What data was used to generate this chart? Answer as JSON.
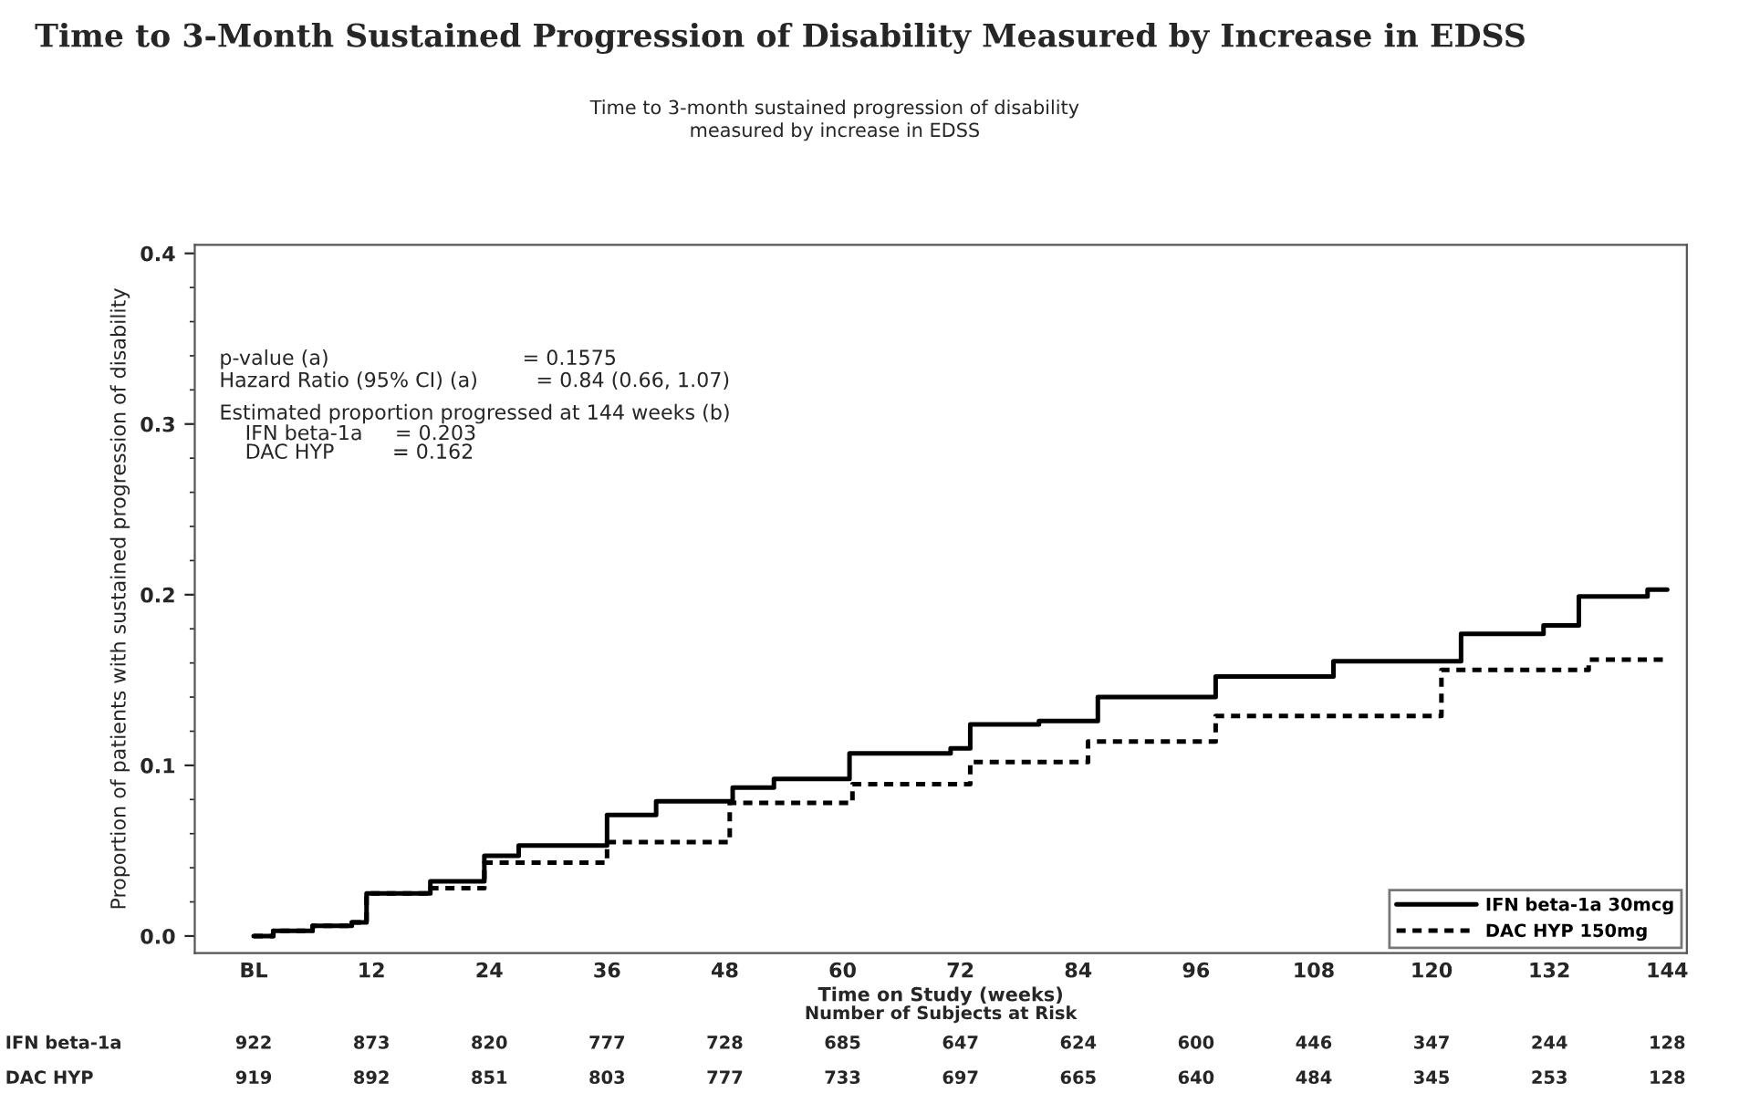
{
  "chart_data": {
    "type": "step",
    "title": "Time to 3-Month Sustained Progression of Disability Measured by Increase in EDSS",
    "subtitle": "Time to 3-month sustained progression of disability\nmeasured by increase in EDSS",
    "xlabel": "Time on Study (weeks)",
    "ylabel": "Proportion of patients with sustained progression of disability",
    "series": [
      {
        "name": "IFN beta-1a 30mcg",
        "color": "#000000",
        "line_style": "solid",
        "x": [
          0,
          2,
          6,
          10,
          11.5,
          18,
          23.5,
          27,
          36,
          41,
          48.8,
          53,
          60.7,
          71,
          73,
          80,
          86,
          98,
          110,
          123,
          131.4,
          135,
          142,
          144
        ],
        "values": [
          0.0,
          0.003,
          0.006,
          0.008,
          0.025,
          0.032,
          0.047,
          0.053,
          0.071,
          0.079,
          0.087,
          0.092,
          0.107,
          0.11,
          0.124,
          0.126,
          0.14,
          0.152,
          0.161,
          0.177,
          0.182,
          0.199,
          0.203,
          0.203
        ]
      },
      {
        "name": "DAC HYP 150mg",
        "color": "#000000",
        "line_style": "dashed",
        "x": [
          0,
          2,
          6,
          10,
          11.5,
          18,
          23.5,
          36,
          48.5,
          61,
          73,
          85,
          98,
          121,
          136,
          144
        ],
        "values": [
          0.0,
          0.003,
          0.006,
          0.008,
          0.025,
          0.028,
          0.043,
          0.055,
          0.078,
          0.089,
          0.102,
          0.114,
          0.129,
          0.156,
          0.162,
          0.162
        ]
      }
    ],
    "xlim": [
      -6,
      146
    ],
    "xticks": [
      {
        "value": 0,
        "label": "BL"
      },
      12,
      24,
      36,
      48,
      60,
      72,
      84,
      96,
      108,
      120,
      132,
      144
    ],
    "ylim": [
      -0.01,
      0.405
    ],
    "yticks": [
      {
        "value": 0,
        "label": "0.0"
      },
      0.1,
      0.2,
      0.3,
      0.4
    ],
    "legend": "bottom right",
    "grid": false,
    "annotations": [
      "p-value (a)                              = 0.1575",
      "Hazard Ratio (95% CI) (a)         = 0.84 (0.66, 1.07)",
      "Estimated proportion progressed at 144 weeks (b)",
      "    IFN beta-1a     = 0.203",
      "    DAC HYP         = 0.162",
      "Number of Subjects at Risk",
      "IFN beta-1a",
      "922",
      "873",
      "820",
      "777",
      "728",
      "685",
      "647",
      "624",
      "600",
      "446",
      "347",
      "244",
      "128",
      "DAC HYP",
      "919",
      "892",
      "851",
      "803",
      "777",
      "733",
      "697",
      "665",
      "640",
      "484",
      "345",
      "253",
      "128"
    ]
  }
}
